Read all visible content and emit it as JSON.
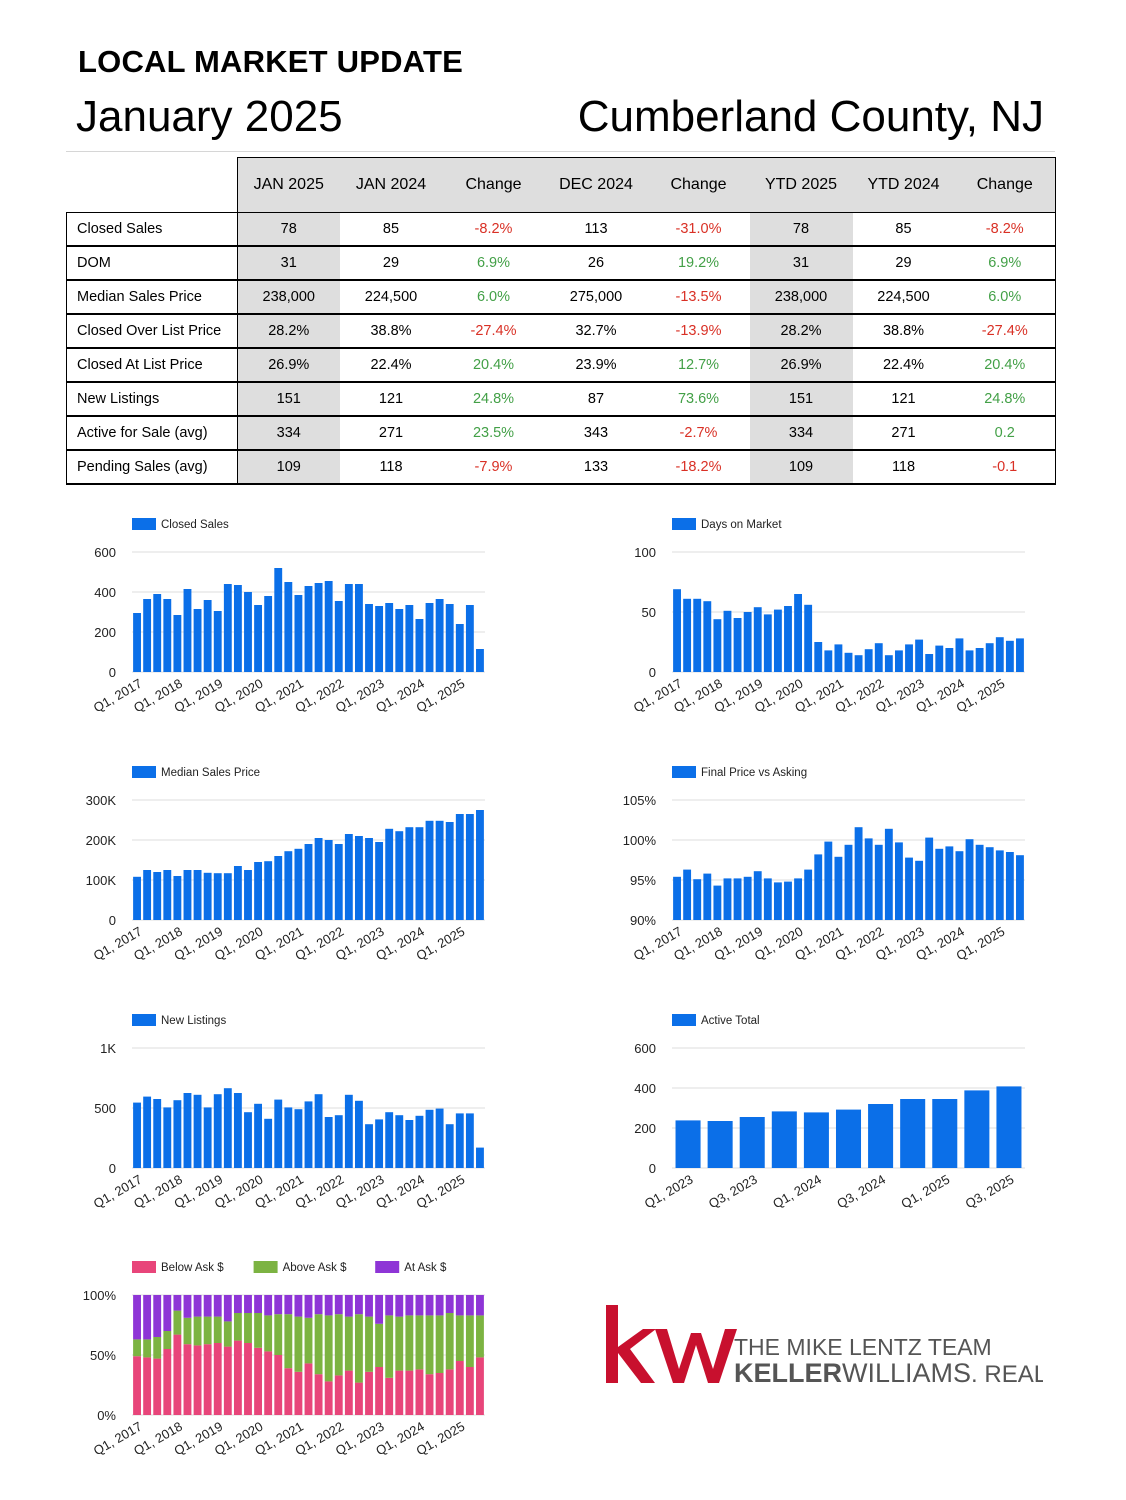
{
  "header": {
    "title": "LOCAL MARKET UPDATE",
    "month": "January 2025",
    "region": "Cumberland County, NJ"
  },
  "table": {
    "columns": [
      "JAN 2025",
      "JAN 2024",
      "Change",
      "DEC 2024",
      "Change",
      "YTD 2025",
      "YTD 2024",
      "Change"
    ],
    "rows": [
      {
        "label": "Closed Sales",
        "values": [
          "78",
          "85",
          "-8.2%",
          "113",
          "-31.0%",
          "78",
          "85",
          "-8.2%"
        ],
        "dir": [
          "",
          "",
          "neg",
          "",
          "neg",
          "",
          "",
          "neg"
        ]
      },
      {
        "label": "DOM",
        "values": [
          "31",
          "29",
          "6.9%",
          "26",
          "19.2%",
          "31",
          "29",
          "6.9%"
        ],
        "dir": [
          "",
          "",
          "pos",
          "",
          "pos",
          "",
          "",
          "pos"
        ]
      },
      {
        "label": "Median Sales Price",
        "values": [
          "238,000",
          "224,500",
          "6.0%",
          "275,000",
          "-13.5%",
          "238,000",
          "224,500",
          "6.0%"
        ],
        "dir": [
          "",
          "",
          "pos",
          "",
          "neg",
          "",
          "",
          "pos"
        ]
      },
      {
        "label": "Closed Over List Price",
        "values": [
          "28.2%",
          "38.8%",
          "-27.4%",
          "32.7%",
          "-13.9%",
          "28.2%",
          "38.8%",
          "-27.4%"
        ],
        "dir": [
          "",
          "",
          "neg",
          "",
          "neg",
          "",
          "",
          "neg"
        ]
      },
      {
        "label": "Closed At List Price",
        "values": [
          "26.9%",
          "22.4%",
          "20.4%",
          "23.9%",
          "12.7%",
          "26.9%",
          "22.4%",
          "20.4%"
        ],
        "dir": [
          "",
          "",
          "pos",
          "",
          "pos",
          "",
          "",
          "pos"
        ]
      },
      {
        "label": "New Listings",
        "values": [
          "151",
          "121",
          "24.8%",
          "87",
          "73.6%",
          "151",
          "121",
          "24.8%"
        ],
        "dir": [
          "",
          "",
          "pos",
          "",
          "pos",
          "",
          "",
          "pos"
        ]
      },
      {
        "label": "Active for Sale (avg)",
        "values": [
          "334",
          "271",
          "23.5%",
          "343",
          "-2.7%",
          "334",
          "271",
          "0.2"
        ],
        "dir": [
          "",
          "",
          "pos",
          "",
          "neg",
          "",
          "",
          "pos"
        ]
      },
      {
        "label": "Pending Sales (avg)",
        "values": [
          "109",
          "118",
          "-7.9%",
          "133",
          "-18.2%",
          "109",
          "118",
          "-0.1"
        ],
        "dir": [
          "",
          "",
          "neg",
          "",
          "neg",
          "",
          "",
          "neg"
        ]
      }
    ]
  },
  "colors": {
    "bar": "#0b6fe8",
    "below": "#e8457a",
    "above": "#7cb342",
    "at": "#8e35d6",
    "grid": "#e2e2e2",
    "kw_red": "#c8102e",
    "kw_text": "#555555"
  },
  "chart_data": [
    {
      "id": "closed",
      "type": "bar",
      "title": "",
      "legend": [
        "Closed Sales"
      ],
      "ylim": [
        0,
        600
      ],
      "ticks": [
        0,
        200,
        400,
        600
      ],
      "tick_labels": [
        "0",
        "200",
        "400",
        "600"
      ],
      "xtick_labels": [
        "Q1, 2017",
        "Q1, 2018",
        "Q1, 2019",
        "Q1, 2020",
        "Q1, 2021",
        "Q1, 2022",
        "Q1, 2023",
        "Q1, 2024",
        "Q1, 2025"
      ],
      "xtick_every": 4,
      "values": [
        295,
        365,
        390,
        365,
        285,
        415,
        315,
        360,
        305,
        440,
        435,
        400,
        335,
        380,
        520,
        450,
        385,
        430,
        445,
        455,
        355,
        440,
        440,
        340,
        330,
        345,
        315,
        335,
        265,
        345,
        365,
        340,
        240,
        335,
        115
      ]
    },
    {
      "id": "dom",
      "type": "bar",
      "title": "",
      "legend": [
        "Days on Market"
      ],
      "ylim": [
        0,
        100
      ],
      "ticks": [
        0,
        50,
        100
      ],
      "tick_labels": [
        "0",
        "50",
        "100"
      ],
      "xtick_labels": [
        "Q1, 2017",
        "Q1, 2018",
        "Q1, 2019",
        "Q1, 2020",
        "Q1, 2021",
        "Q1, 2022",
        "Q1, 2023",
        "Q1, 2024",
        "Q1, 2025"
      ],
      "xtick_every": 4,
      "values": [
        69,
        61,
        61,
        59,
        44,
        51,
        45,
        50,
        54,
        48,
        52,
        55,
        65,
        56,
        25,
        18,
        23,
        16,
        14,
        19,
        24,
        14,
        18,
        23,
        27,
        15,
        22,
        20,
        28,
        18,
        20,
        24,
        29,
        26,
        28
      ]
    },
    {
      "id": "price",
      "type": "bar",
      "title": "",
      "legend": [
        "Median Sales Price"
      ],
      "ylim": [
        0,
        300000
      ],
      "ticks": [
        0,
        100000,
        200000,
        300000
      ],
      "tick_labels": [
        "0",
        "100K",
        "200K",
        "300K"
      ],
      "xtick_labels": [
        "Q1, 2017",
        "Q1, 2018",
        "Q1, 2019",
        "Q1, 2020",
        "Q1, 2021",
        "Q1, 2022",
        "Q1, 2023",
        "Q1, 2024",
        "Q1, 2025"
      ],
      "xtick_every": 4,
      "values": [
        108000,
        125000,
        120000,
        125000,
        110000,
        125000,
        125000,
        118000,
        117000,
        117000,
        135000,
        125000,
        145000,
        147000,
        160000,
        172000,
        178000,
        190000,
        205000,
        200000,
        190000,
        215000,
        210000,
        205000,
        195000,
        228000,
        222000,
        232000,
        232000,
        248000,
        248000,
        245000,
        265000,
        265000,
        275000
      ]
    },
    {
      "id": "final",
      "type": "bar",
      "title": "",
      "legend": [
        "Final Price vs Asking"
      ],
      "ylim": [
        90,
        105
      ],
      "ticks": [
        90,
        95,
        100,
        105
      ],
      "tick_labels": [
        "90%",
        "95%",
        "100%",
        "105%"
      ],
      "xtick_labels": [
        "Q1, 2017",
        "Q1, 2018",
        "Q1, 2019",
        "Q1, 2020",
        "Q1, 2021",
        "Q1, 2022",
        "Q1, 2023",
        "Q1, 2024",
        "Q1, 2025"
      ],
      "xtick_every": 4,
      "values": [
        95.4,
        96.3,
        95.1,
        95.8,
        94.3,
        95.2,
        95.2,
        95.4,
        96.1,
        95.2,
        94.7,
        94.8,
        95.2,
        96.3,
        98.2,
        99.8,
        97.9,
        99.4,
        101.6,
        100.2,
        99.4,
        101.4,
        99.7,
        97.8,
        97.4,
        100.3,
        98.9,
        99.2,
        98.6,
        100.1,
        99.4,
        99.1,
        98.7,
        98.5,
        98.1
      ]
    },
    {
      "id": "listings",
      "type": "bar",
      "title": "",
      "legend": [
        "New Listings"
      ],
      "ylim": [
        0,
        1000
      ],
      "ticks": [
        0,
        500,
        1000
      ],
      "tick_labels": [
        "0",
        "500",
        "1K"
      ],
      "xtick_labels": [
        "Q1, 2017",
        "Q1, 2018",
        "Q1, 2019",
        "Q1, 2020",
        "Q1, 2021",
        "Q1, 2022",
        "Q1, 2023",
        "Q1, 2024",
        "Q1, 2025"
      ],
      "xtick_every": 4,
      "values": [
        545,
        595,
        575,
        505,
        565,
        625,
        610,
        505,
        615,
        665,
        625,
        465,
        535,
        410,
        570,
        505,
        490,
        555,
        615,
        425,
        440,
        610,
        560,
        365,
        405,
        465,
        440,
        400,
        435,
        485,
        495,
        365,
        455,
        455,
        170
      ]
    },
    {
      "id": "active",
      "type": "bar",
      "title": "",
      "legend": [
        "Active Total"
      ],
      "ylim": [
        0,
        600
      ],
      "ticks": [
        0,
        200,
        400,
        600
      ],
      "tick_labels": [
        "0",
        "200",
        "400",
        "600"
      ],
      "xtick_labels": [
        "Q1, 2023",
        "Q3, 2023",
        "Q1, 2024",
        "Q3, 2024",
        "Q1, 2025",
        "Q3, 2025"
      ],
      "xtick_every": 2,
      "values": [
        238,
        235,
        255,
        283,
        278,
        292,
        320,
        345,
        345,
        388,
        408
      ]
    },
    {
      "id": "asks",
      "type": "bar",
      "stacked": true,
      "title": "",
      "legend": [
        "Below Ask $",
        "Above Ask $",
        "At Ask $"
      ],
      "ylim": [
        0,
        100
      ],
      "ticks": [
        0,
        50,
        100
      ],
      "tick_labels": [
        "0%",
        "50%",
        "100%"
      ],
      "xtick_labels": [
        "Q1, 2017",
        "Q1, 2018",
        "Q1, 2019",
        "Q1, 2020",
        "Q1, 2021",
        "Q1, 2022",
        "Q1, 2023",
        "Q1, 2024",
        "Q1, 2025"
      ],
      "xtick_every": 4,
      "series": [
        {
          "name": "Below Ask $",
          "values": [
            49,
            48,
            47,
            55,
            67,
            59,
            58,
            59,
            60,
            57,
            62,
            60,
            56,
            53,
            50,
            39,
            36,
            43,
            34,
            28,
            33,
            37,
            27,
            36,
            40,
            31,
            37,
            37,
            38,
            34,
            35,
            38,
            45,
            40,
            48
          ]
        },
        {
          "name": "Above Ask $",
          "values": [
            14,
            15,
            18,
            15,
            20,
            22,
            24,
            23,
            22,
            21,
            23,
            25,
            29,
            30,
            34,
            45,
            46,
            38,
            50,
            55,
            51,
            45,
            57,
            46,
            36,
            52,
            45,
            46,
            45,
            49,
            48,
            47,
            38,
            43,
            35
          ]
        },
        {
          "name": "At Ask $",
          "values": [
            37,
            37,
            35,
            30,
            13,
            19,
            18,
            18,
            18,
            22,
            15,
            15,
            15,
            17,
            16,
            16,
            18,
            19,
            16,
            17,
            16,
            18,
            16,
            18,
            24,
            17,
            18,
            17,
            17,
            17,
            17,
            15,
            17,
            17,
            17
          ]
        }
      ]
    }
  ],
  "logo": {
    "mark": "kw",
    "team": "THE MIKE LENTZ TEAM",
    "brand_bold": "KELLER",
    "brand_light": "WILLIAMS",
    "brand_suffix": ". REALTY"
  }
}
